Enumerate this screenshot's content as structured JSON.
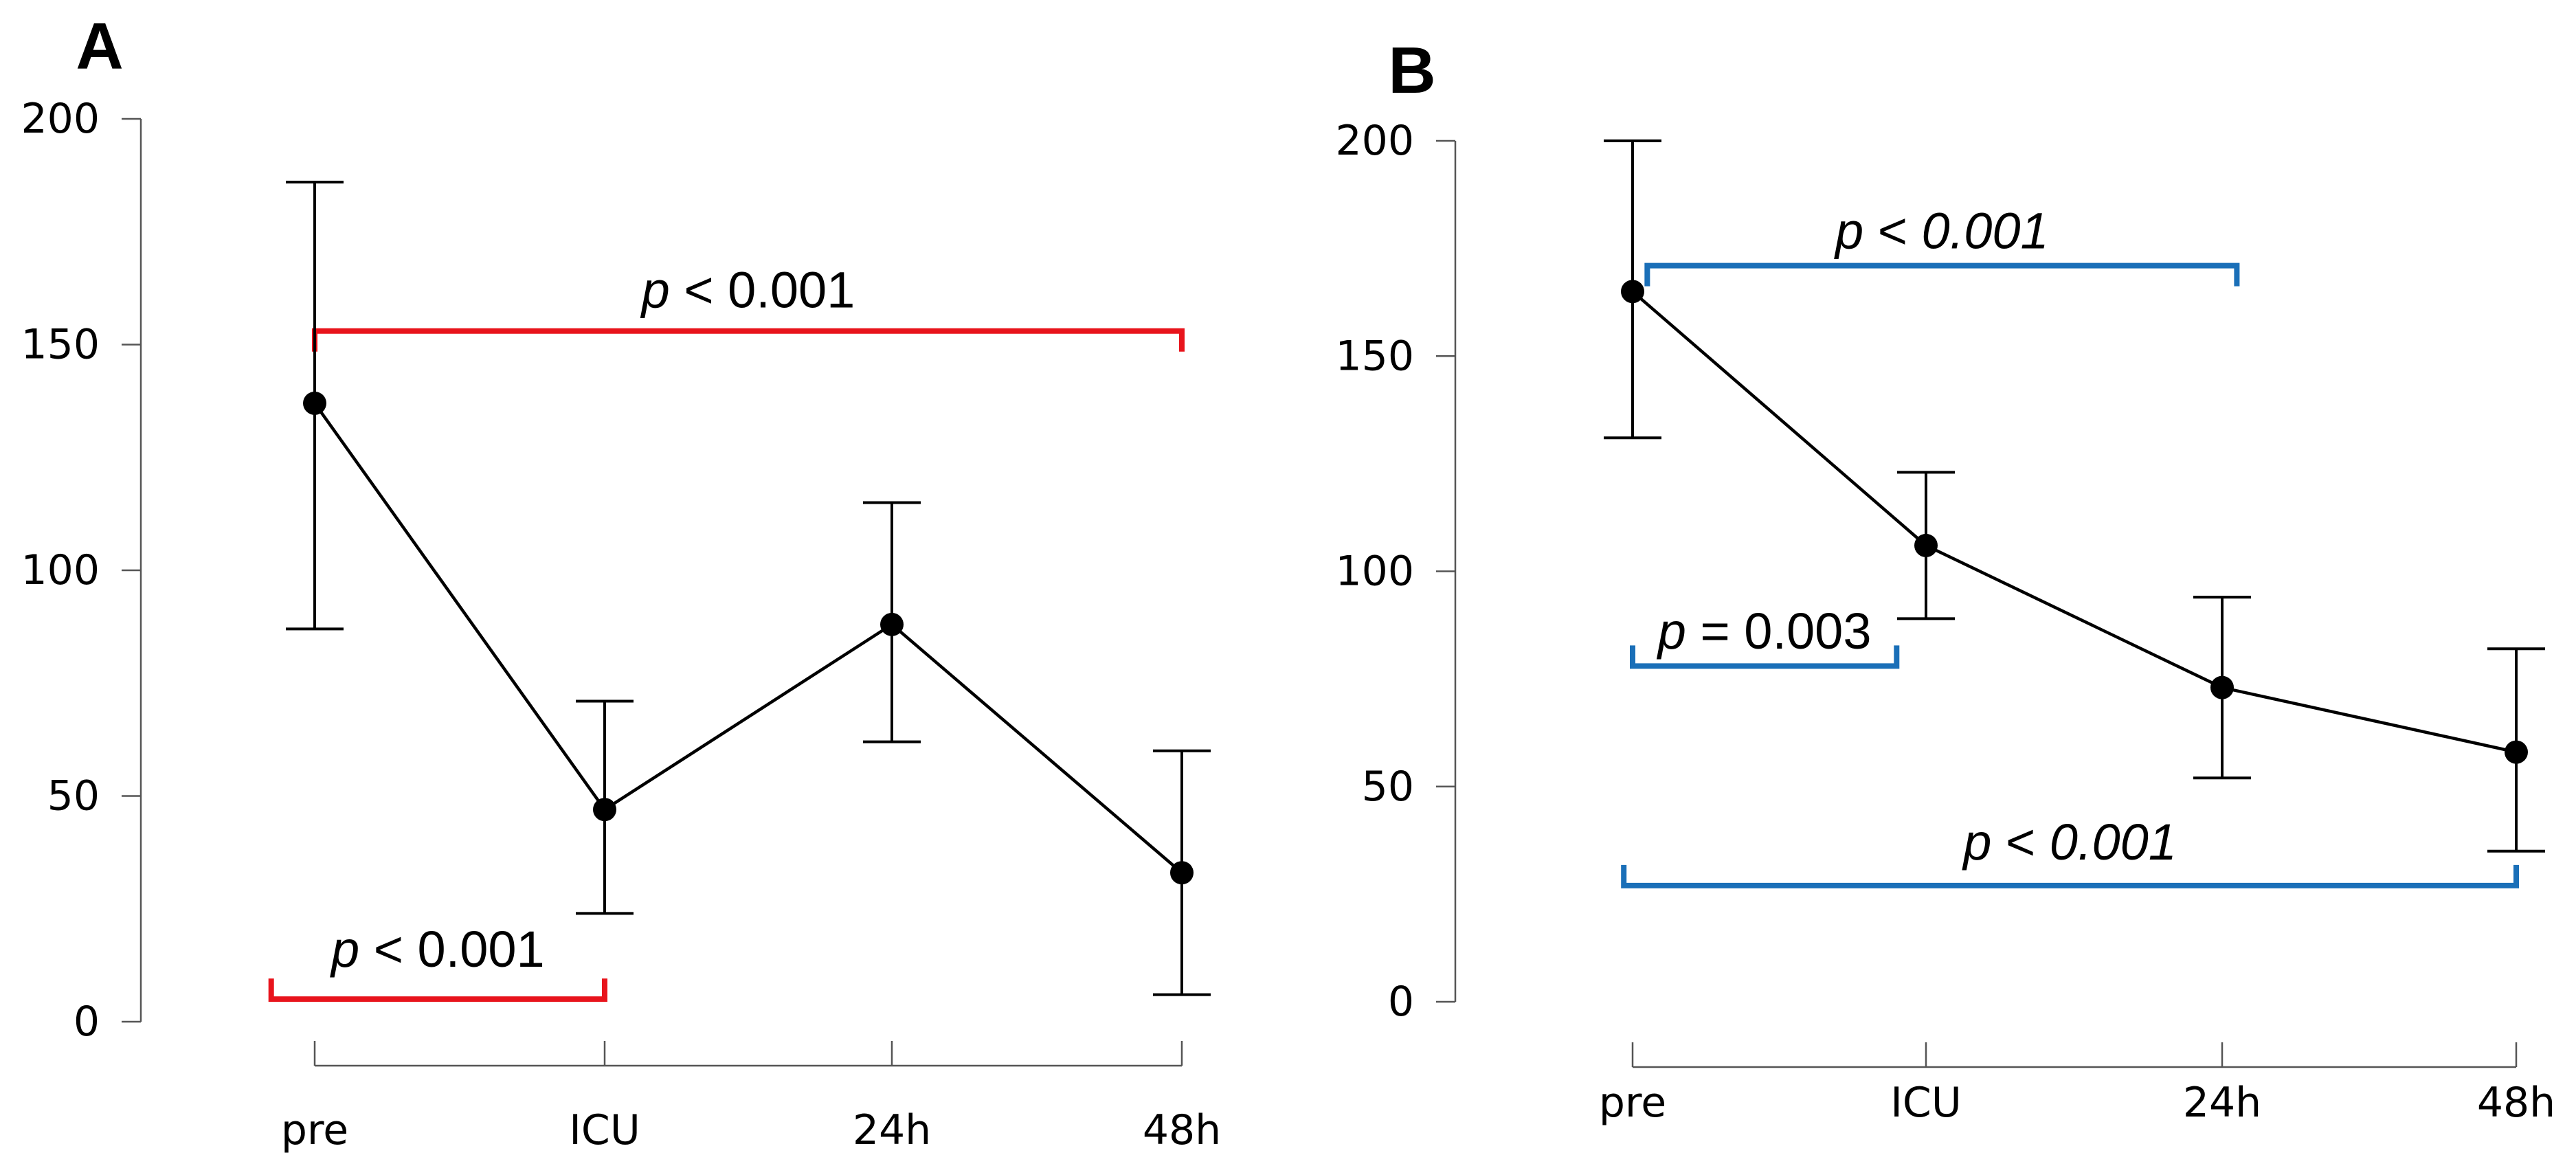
{
  "chart_data": [
    {
      "type": "line",
      "panel_label": "A",
      "categories": [
        "pre",
        "ICU",
        "24h",
        "48h"
      ],
      "values": [
        137,
        47,
        88,
        33
      ],
      "error_upper": [
        186,
        71,
        115,
        60
      ],
      "error_lower": [
        87,
        24,
        62,
        6
      ],
      "ylim": [
        0,
        200
      ],
      "yticks": [
        "0",
        "50",
        "100",
        "150",
        "200"
      ],
      "annotations": [
        {
          "p": "p",
          "op": " < ",
          "value": "0.001",
          "from": 0,
          "to": 3,
          "y": 153,
          "direction": "down",
          "label_y": 162,
          "value_italic": false,
          "color": "#e8141c"
        },
        {
          "p": "p",
          "op": " < ",
          "value": "0.001",
          "from": -0.15,
          "to": 1,
          "y": 5,
          "direction": "up",
          "label_y": 16,
          "value_italic": false,
          "color": "#e8141c"
        }
      ]
    },
    {
      "type": "line",
      "panel_label": "B",
      "categories": [
        "pre",
        "ICU",
        "24h",
        "48h"
      ],
      "values": [
        165,
        106,
        73,
        58
      ],
      "error_upper": [
        200,
        123,
        94,
        82
      ],
      "error_lower": [
        131,
        89,
        52,
        35
      ],
      "ylim": [
        0,
        200
      ],
      "yticks": [
        "0",
        "50",
        "100",
        "150",
        "200"
      ],
      "annotations": [
        {
          "p": "p",
          "op": " < ",
          "value": "0.001",
          "from": 0.05,
          "to": 2.05,
          "y": 171,
          "direction": "down",
          "label_y": 179,
          "value_italic": true,
          "color": "#1a6fb8"
        },
        {
          "p": "p",
          "op": " = ",
          "value": "0.003",
          "from": 0,
          "to": 0.9,
          "y": 78,
          "direction": "up",
          "label_y": 86,
          "value_italic": false,
          "color": "#1a6fb8"
        },
        {
          "p": "p",
          "op": " < ",
          "value": "0.001",
          "from": -0.03,
          "to": 3.0,
          "y": 27,
          "direction": "up",
          "label_y": 37,
          "value_italic": true,
          "color": "#1a6fb8"
        }
      ]
    }
  ]
}
